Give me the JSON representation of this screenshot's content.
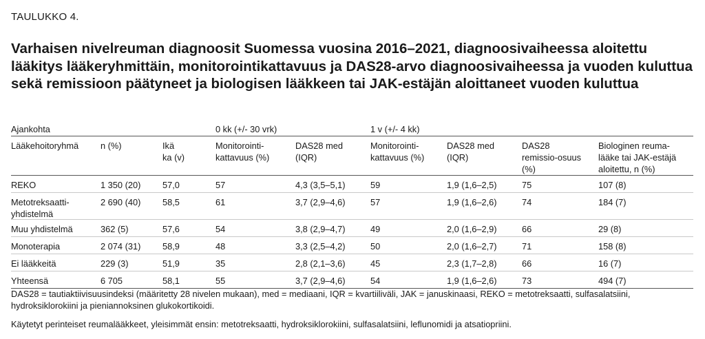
{
  "table_label": "TAULUKKO 4.",
  "title": "Varhaisen nivelreuman diagnoosit Suomessa vuosina 2016–2021, diagnoosivaiheessa aloitettu lääkitys lääkeryhmittäin, monitorointikattavuus ja DAS28-arvo diagnoosivaiheessa ja vuoden kuluttua sekä remissioon päätyneet ja biologisen lääkkeen tai JAK-estäjän aloittaneet vuoden kuluttua",
  "header_row1": {
    "c0": "Ajankohta",
    "c3": "0 kk (+/- 30 vrk)",
    "c5": "1 v (+/- 4 kk)"
  },
  "header_row2": {
    "c0": "Lääkehoitoryhmä",
    "c1": "n (%)",
    "c2": "Ikä\nka (v)",
    "c3": "Monitorointi-\nkattavuus (%)",
    "c4": "DAS28 med\n(IQR)",
    "c5": "Monitorointi-\nkattavuus (%)",
    "c6": "DAS28 med\n(IQR)",
    "c7": "DAS28\nremissio-osuus\n(%)",
    "c8": "Biologinen reuma-\nlääke tai JAK-estäjä\naloitettu, n (%)"
  },
  "rows": [
    {
      "c0": "REKO",
      "c1": "1 350 (20)",
      "c2": "57,0",
      "c3": "57",
      "c4": "4,3 (3,5–5,1)",
      "c5": "59",
      "c6": "1,9 (1,6–2,5)",
      "c7": "75",
      "c8": "107 (8)"
    },
    {
      "c0": "Metotreksaatti-\nyhdistelmä",
      "c1": "2 690 (40)",
      "c2": "58,5",
      "c3": "61",
      "c4": "3,7 (2,9–4,6)",
      "c5": "57",
      "c6": "1,9 (1,6–2,6)",
      "c7": "74",
      "c8": "184 (7)"
    },
    {
      "c0": "Muu yhdistelmä",
      "c1": "362 (5)",
      "c2": "57,6",
      "c3": "54",
      "c4": "3,8 (2,9–4,7)",
      "c5": "49",
      "c6": "2,0 (1,6–2,9)",
      "c7": "66",
      "c8": "29 (8)"
    },
    {
      "c0": "Monoterapia",
      "c1": "2 074 (31)",
      "c2": "58,9",
      "c3": "48",
      "c4": "3,3 (2,5–4,2)",
      "c5": "50",
      "c6": "2,0 (1,6–2,7)",
      "c7": "71",
      "c8": "158 (8)"
    },
    {
      "c0": "Ei lääkkeitä",
      "c1": "229 (3)",
      "c2": "51,9",
      "c3": "35",
      "c4": "2,8 (2,1–3,6)",
      "c5": "45",
      "c6": "2,3 (1,7–2,8)",
      "c7": "66",
      "c8": "16 (7)"
    },
    {
      "c0": "Yhteensä",
      "c1": "6 705",
      "c2": "58,1",
      "c3": "55",
      "c4": "3,7 (2,9–4,6)",
      "c5": "54",
      "c6": "1,9 (1,6–2,6)",
      "c7": "73",
      "c8": "494 (7)"
    }
  ],
  "notes": [
    "DAS28 = tautiaktiivisuusindeksi (määritetty 28 nivelen mukaan), med = mediaani, IQR = kvartiiliväli, JAK = januskinaasi, REKO = metotreksaatti, sulfasalatsiini, hydroksiklorokiini ja pieniannoksinen glukokortikoidi.",
    "Käytetyt perinteiset reumalääkkeet, yleisimmät ensin: metotreksaatti, hydroksiklorokiini, sulfasalatsiini, leflunomidi ja atsatiopriini."
  ]
}
